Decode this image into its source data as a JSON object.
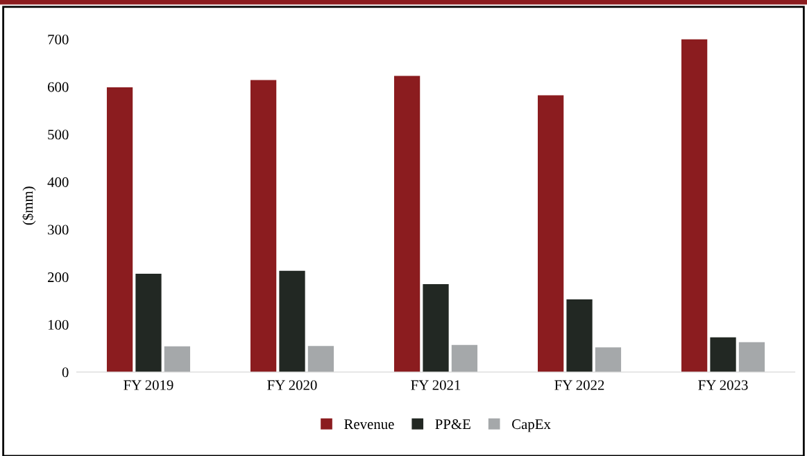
{
  "chart_data": {
    "type": "bar",
    "ylabel": "($mm)",
    "categories": [
      "FY 2019",
      "FY 2020",
      "FY 2021",
      "FY 2022",
      "FY 2023"
    ],
    "series": [
      {
        "name": "Revenue",
        "color": "#8b1c1f",
        "values": [
          599,
          614,
          623,
          582,
          700
        ]
      },
      {
        "name": "PP&E",
        "color": "#222823",
        "values": [
          207,
          213,
          185,
          153,
          73
        ]
      },
      {
        "name": "CapEx",
        "color": "#a5a8aa",
        "values": [
          54,
          55,
          57,
          52,
          63
        ]
      }
    ],
    "ylim": [
      0,
      700
    ],
    "yticks": [
      0,
      100,
      200,
      300,
      400,
      500,
      600,
      700
    ],
    "grid": false,
    "legend": "bottom"
  }
}
